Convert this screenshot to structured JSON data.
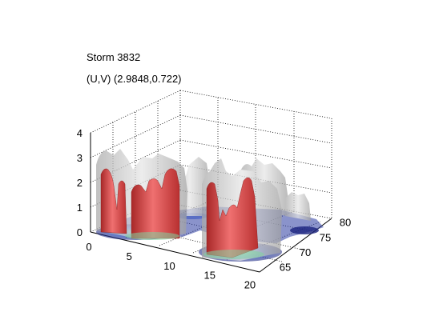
{
  "title_line1": "Storm 3832",
  "title_line2": "(U,V) (2.9848,0.722)",
  "colors": {
    "core": "#d94a4a",
    "envelope": "#b8b8b8",
    "base_fill_dark": "#1a237e",
    "base_fill_mid": "#4a6fd0",
    "base_fill_light": "#7fd3a0"
  },
  "chart_data": {
    "type": "surface3d",
    "title": "Storm 3832",
    "subtitle": "(U,V) (2.9848,0.722)",
    "x_ticks": [
      "0",
      "5",
      "10",
      "15",
      "20"
    ],
    "y_ticks": [
      "65",
      "70",
      "75",
      "80"
    ],
    "z_ticks": [
      "0",
      "1",
      "2",
      "3",
      "4"
    ],
    "xlim": [
      0,
      21
    ],
    "ylim": [
      63,
      81
    ],
    "zlim": [
      0,
      4
    ],
    "grid": true,
    "surfaces": [
      {
        "name": "isosurface-outer",
        "color": "#b8b8b8",
        "cells": [
          {
            "x": 1.5,
            "y": 73,
            "h": 3.1
          },
          {
            "x": 3,
            "y": 73,
            "h": 3.5
          },
          {
            "x": 4.5,
            "y": 74,
            "h": 2.8
          },
          {
            "x": 6,
            "y": 75,
            "h": 3.4
          },
          {
            "x": 8,
            "y": 76,
            "h": 3.5
          },
          {
            "x": 10,
            "y": 77,
            "h": 2.9
          },
          {
            "x": 12,
            "y": 76,
            "h": 2.6
          },
          {
            "x": 14,
            "y": 68,
            "h": 3.2
          },
          {
            "x": 16,
            "y": 66,
            "h": 2.9
          },
          {
            "x": 18,
            "y": 67,
            "h": 3.3
          },
          {
            "x": 20,
            "y": 70,
            "h": 3.6
          },
          {
            "x": 21,
            "y": 74,
            "h": 3.4
          },
          {
            "x": 21,
            "y": 79,
            "h": 1.7
          }
        ]
      },
      {
        "name": "isosurface-core",
        "color": "#d94a4a",
        "cells": [
          {
            "x": 2.5,
            "y": 72,
            "h": 2.5
          },
          {
            "x": 3.5,
            "y": 72,
            "h": 3.2
          },
          {
            "x": 6.5,
            "y": 72,
            "h": 1.9
          },
          {
            "x": 8,
            "y": 72,
            "h": 2.1
          },
          {
            "x": 9.5,
            "y": 72,
            "h": 2.5
          },
          {
            "x": 15,
            "y": 65,
            "h": 2.1
          },
          {
            "x": 16.5,
            "y": 65,
            "h": 1.3
          },
          {
            "x": 18,
            "y": 65,
            "h": 2.0
          },
          {
            "x": 19.5,
            "y": 65,
            "h": 2.4
          }
        ]
      }
    ]
  }
}
